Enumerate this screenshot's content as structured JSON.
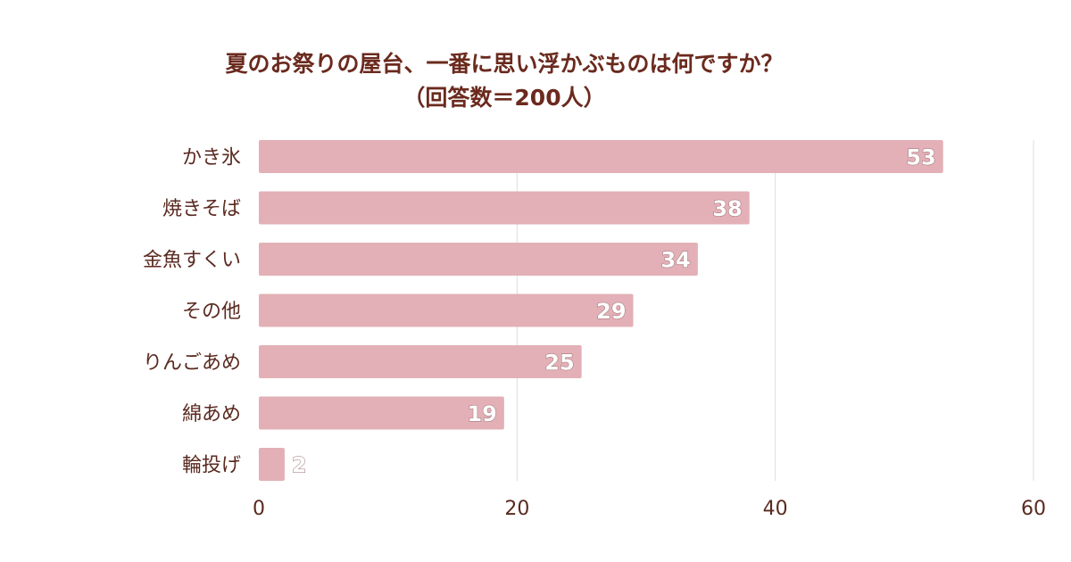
{
  "chart_data": {
    "type": "bar",
    "orientation": "horizontal",
    "title": "夏のお祭りの屋台、一番に思い浮かぶものは何ですか？",
    "subtitle": "（回答数＝200人）",
    "categories": [
      "かき氷",
      "焼きそば",
      "金魚すくい",
      "その他",
      "りんごあめ",
      "綿あめ",
      "輪投げ"
    ],
    "values": [
      53,
      38,
      34,
      29,
      25,
      19,
      2
    ],
    "xlim": [
      0,
      60
    ],
    "xticks": [
      0,
      20,
      40,
      60
    ],
    "grid": true,
    "bar_color": "#e2b0b6",
    "grid_color": "#dcdcdc",
    "text_color": "#5a2a20",
    "title_color": "#6b2a1e"
  }
}
